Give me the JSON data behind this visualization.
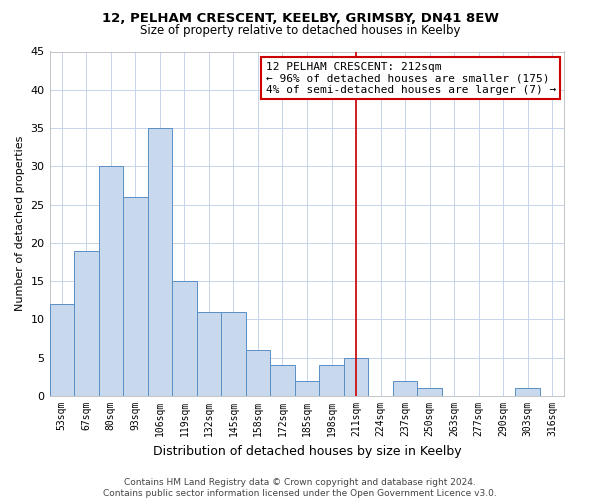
{
  "title": "12, PELHAM CRESCENT, KEELBY, GRIMSBY, DN41 8EW",
  "subtitle": "Size of property relative to detached houses in Keelby",
  "xlabel": "Distribution of detached houses by size in Keelby",
  "ylabel": "Number of detached properties",
  "bar_labels": [
    "53sqm",
    "67sqm",
    "80sqm",
    "93sqm",
    "106sqm",
    "119sqm",
    "132sqm",
    "145sqm",
    "158sqm",
    "172sqm",
    "185sqm",
    "198sqm",
    "211sqm",
    "224sqm",
    "237sqm",
    "250sqm",
    "263sqm",
    "277sqm",
    "290sqm",
    "303sqm",
    "316sqm"
  ],
  "bar_values": [
    12,
    19,
    30,
    26,
    35,
    15,
    11,
    11,
    6,
    4,
    2,
    4,
    5,
    0,
    2,
    1,
    0,
    0,
    0,
    1,
    0
  ],
  "bar_color": "#c8d9ee",
  "bar_edge_color": "#5a8fc5",
  "ylim": [
    0,
    45
  ],
  "yticks": [
    0,
    5,
    10,
    15,
    20,
    25,
    30,
    35,
    40,
    45
  ],
  "vline_x_index": 12,
  "vline_color": "#cc0000",
  "annotation_title": "12 PELHAM CRESCENT: 212sqm",
  "annotation_line1": "← 96% of detached houses are smaller (175)",
  "annotation_line2": "4% of semi-detached houses are larger (7) →",
  "annotation_box_edge": "#cc0000",
  "footer_line1": "Contains HM Land Registry data © Crown copyright and database right 2024.",
  "footer_line2": "Contains public sector information licensed under the Open Government Licence v3.0.",
  "background_color": "#ffffff",
  "grid_color": "#c5d5e8"
}
